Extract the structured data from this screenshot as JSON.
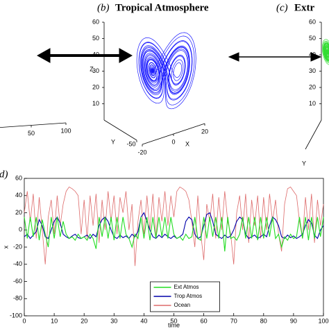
{
  "chart_data": [
    {
      "type": "line3d",
      "xlim": [
        0,
        100
      ],
      "xticks": [
        50,
        100
      ]
    },
    {
      "type": "line3d",
      "label": "(b)",
      "title": "Tropical Atmosphere",
      "color": "#1a1aff",
      "xlabel": "X",
      "ylabel": "Y",
      "zlabel": "Z",
      "xlim": [
        -20,
        20
      ],
      "xticks": [
        -20,
        0,
        20
      ],
      "ylim": [
        0,
        -50
      ],
      "yticks": [
        -50
      ],
      "zlim": [
        0,
        60
      ],
      "zticks": [
        10,
        20,
        30,
        40,
        50,
        60
      ]
    },
    {
      "type": "line3d",
      "label": "(c)",
      "title": "Extr",
      "color": "#33dd33",
      "ylabel": "Y",
      "zlim": [
        0,
        60
      ],
      "zticks": [
        10,
        20,
        30,
        40,
        50,
        60
      ]
    },
    {
      "type": "line",
      "label": "(d)",
      "xlabel": "time",
      "ylabel": "x",
      "x": [
        0,
        1,
        2,
        3,
        4,
        5,
        6,
        7,
        8,
        9,
        10,
        11,
        12,
        13,
        14,
        15,
        16,
        17,
        18,
        19,
        20,
        21,
        22,
        23,
        24,
        25,
        26,
        27,
        28,
        29,
        30,
        31,
        32,
        33,
        34,
        35,
        36,
        37,
        38,
        39,
        40,
        41,
        42,
        43,
        44,
        45,
        46,
        47,
        48,
        49,
        50,
        51,
        52,
        53,
        54,
        55,
        56,
        57,
        58,
        59,
        60,
        61,
        62,
        63,
        64,
        65,
        66,
        67,
        68,
        69,
        70,
        71,
        72,
        73,
        74,
        75,
        76,
        77,
        78,
        79,
        80,
        81,
        82,
        83,
        84,
        85,
        86,
        87,
        88,
        89,
        90,
        91,
        92,
        93,
        94,
        95,
        96,
        97,
        98,
        99,
        100
      ],
      "xlim": [
        0,
        100
      ],
      "xticks": [
        0,
        10,
        20,
        30,
        40,
        50,
        60,
        70,
        80,
        90,
        100
      ],
      "ylim": [
        -100,
        60
      ],
      "yticks": [
        -100,
        -80,
        -60,
        -40,
        -20,
        0,
        20,
        40,
        60
      ],
      "grid": false,
      "legend": "lower center",
      "series": [
        {
          "name": "Ext Atmos",
          "color": "#22dd22",
          "values": [
            15,
            -10,
            15,
            -8,
            15,
            -12,
            12,
            -5,
            -20,
            15,
            -10,
            15,
            -8,
            10,
            -5,
            -10,
            -8,
            -12,
            -5,
            -10,
            -8,
            -12,
            -5,
            -10,
            -22,
            15,
            -8,
            15,
            -10,
            15,
            -12,
            15,
            -10,
            15,
            -5,
            -10,
            -20,
            -5,
            -10,
            15,
            -10,
            15,
            -12,
            15,
            -10,
            15,
            -8,
            15,
            -10,
            15,
            -5,
            -10,
            -8,
            -12,
            -5,
            -10,
            -8,
            15,
            -10,
            -12,
            15,
            -10,
            15,
            -8,
            15,
            -10,
            15,
            -25,
            15,
            -10,
            -8,
            -12,
            -5,
            15,
            -10,
            15,
            -10,
            15,
            -12,
            15,
            -10,
            15,
            -8,
            15,
            -10,
            -5,
            -20,
            -8,
            -12,
            -5,
            -10,
            -8,
            15,
            -10,
            15,
            -12,
            15,
            -10,
            15,
            -8,
            15
          ]
        },
        {
          "name": "Trop Atmos",
          "color": "#0000aa",
          "values": [
            -8,
            -5,
            -10,
            -6,
            -2,
            12,
            5,
            -8,
            -10,
            0,
            10,
            15,
            8,
            -5,
            -8,
            -10,
            -7,
            -5,
            -9,
            -10,
            -8,
            -6,
            -10,
            -5,
            -8,
            5,
            12,
            15,
            10,
            0,
            -8,
            -10,
            -6,
            -9,
            -7,
            -10,
            -5,
            -8,
            -2,
            15,
            20,
            10,
            0,
            -8,
            -10,
            -6,
            -9,
            -5,
            -8,
            -10,
            -7,
            -10,
            -8,
            -5,
            10,
            15,
            12,
            -5,
            -10,
            -8,
            5,
            18,
            20,
            10,
            -5,
            -8,
            -10,
            -6,
            -9,
            -7,
            0,
            10,
            15,
            12,
            -5,
            -10,
            -8,
            -6,
            -10,
            -8,
            -5,
            -8,
            5,
            15,
            12,
            5,
            -8,
            -10,
            -6,
            -9,
            -7,
            -10,
            -8,
            -5,
            5,
            12,
            8,
            -6,
            -10,
            0,
            5
          ]
        },
        {
          "name": "Ocean",
          "color": "#dd6a6a",
          "values": [
            20,
            45,
            10,
            42,
            -10,
            38,
            0,
            -40,
            15,
            35,
            -5,
            40,
            5,
            30,
            45,
            50,
            48,
            45,
            40,
            -5,
            35,
            -10,
            40,
            5,
            42,
            -15,
            35,
            0,
            45,
            10,
            40,
            -5,
            38,
            20,
            45,
            0,
            30,
            -42,
            10,
            35,
            -5,
            40,
            0,
            42,
            -10,
            38,
            10,
            45,
            5,
            40,
            15,
            45,
            50,
            48,
            45,
            35,
            10,
            -20,
            40,
            -5,
            -35,
            30,
            10,
            42,
            -10,
            38,
            0,
            45,
            10,
            -5,
            -40,
            20,
            40,
            0,
            42,
            -15,
            35,
            5,
            40,
            -10,
            38,
            0,
            42,
            10,
            35,
            -5,
            -25,
            30,
            48,
            50,
            45,
            40,
            10,
            -10,
            38,
            0,
            42,
            -15,
            35,
            5,
            30
          ]
        }
      ]
    }
  ]
}
